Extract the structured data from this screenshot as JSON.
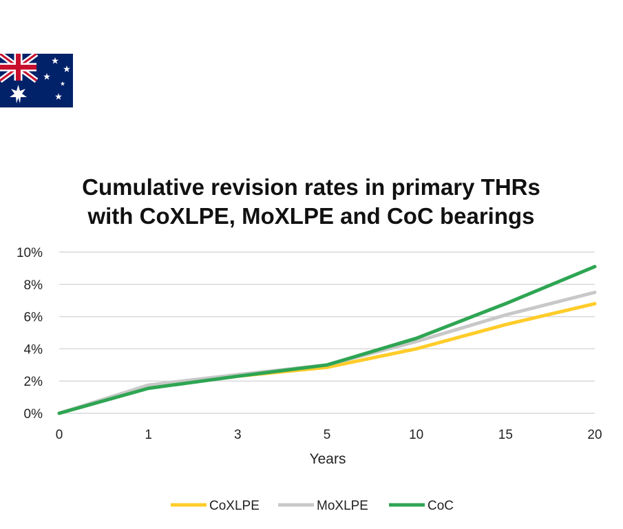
{
  "flag": {
    "name": "Australia",
    "colors": {
      "blue": "#012169",
      "red": "#C8102E",
      "white": "#FFFFFF"
    }
  },
  "chart_data": {
    "type": "line",
    "title_lines": [
      "Cumulative revision rates in primary THRs",
      "with CoXLPE, MoXLPE and CoC bearings"
    ],
    "xlabel": "Years",
    "ylabel": "",
    "categories": [
      "0",
      "1",
      "3",
      "5",
      "10",
      "15",
      "20"
    ],
    "yticks": [
      "0%",
      "2%",
      "4%",
      "6%",
      "8%",
      "10%"
    ],
    "ylim": [
      0,
      10
    ],
    "grid": true,
    "legend_position": "bottom",
    "series": [
      {
        "name": "CoXLPE",
        "color": "#FFCC29",
        "values": [
          0,
          1.6,
          2.3,
          2.85,
          4.0,
          5.5,
          6.8
        ]
      },
      {
        "name": "MoXLPE",
        "color": "#C8C8C8",
        "values": [
          0,
          1.75,
          2.4,
          3.0,
          4.45,
          6.1,
          7.5
        ]
      },
      {
        "name": "CoC",
        "color": "#2EA553",
        "values": [
          0,
          1.55,
          2.3,
          3.0,
          4.65,
          6.8,
          9.1
        ]
      }
    ]
  }
}
